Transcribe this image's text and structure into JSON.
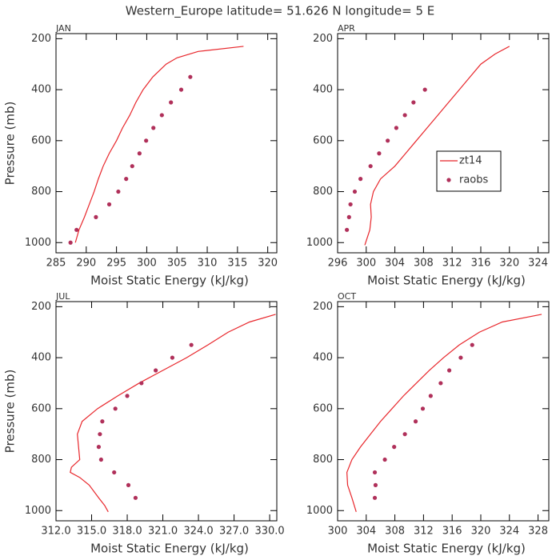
{
  "title": "Western_Europe  latitude= 51.626 N longitude= 5 E",
  "chart_data": [
    {
      "type": "line",
      "label": "JAN",
      "xlabel": "Moist Static Energy (kJ/kg)",
      "ylabel": "Pressure (mb)",
      "xlim": [
        285,
        321.5
      ],
      "xticks": [
        285,
        290,
        295,
        300,
        305,
        310,
        315,
        320
      ],
      "ylim": [
        1040,
        180
      ],
      "yticks": [
        200,
        400,
        600,
        800,
        1000
      ],
      "series": [
        {
          "style": "line",
          "color": "#e8262b",
          "x": [
            288.2,
            288.8,
            289.7,
            290.5,
            291.3,
            292.0,
            292.8,
            293.8,
            295.0,
            296.0,
            297.2,
            298.2,
            299.4,
            301.0,
            303.2,
            305.0,
            308.5,
            316.0
          ],
          "y": [
            1000,
            950,
            900,
            850,
            800,
            750,
            700,
            650,
            600,
            550,
            500,
            450,
            400,
            350,
            300,
            275,
            250,
            230
          ]
        },
        {
          "style": "markers",
          "color": "#b0305a",
          "x": [
            287.4,
            288.4,
            291.6,
            293.8,
            295.3,
            296.6,
            297.6,
            298.8,
            299.9,
            301.1,
            302.5,
            304.0,
            305.7,
            307.2
          ],
          "y": [
            1000,
            950,
            900,
            850,
            800,
            750,
            700,
            650,
            600,
            550,
            500,
            450,
            400,
            350
          ]
        }
      ]
    },
    {
      "type": "line",
      "label": "APR",
      "xlabel": "Moist Static Energy (kJ/kg)",
      "xlim": [
        296,
        325.5
      ],
      "xticks": [
        296,
        300,
        304,
        308,
        312,
        316,
        320,
        324
      ],
      "ylim": [
        1040,
        180
      ],
      "yticks": [
        200,
        400,
        600,
        800,
        1000
      ],
      "legend": "right",
      "series": [
        {
          "name": "zt14",
          "style": "line",
          "color": "#e8262b",
          "x": [
            299.8,
            300.5,
            300.7,
            300.6,
            301.0,
            302.0,
            304.0,
            305.5,
            307.0,
            308.5,
            310.0,
            311.5,
            313.0,
            314.5,
            316.0,
            318.0,
            320.0
          ],
          "y": [
            1010,
            950,
            900,
            850,
            800,
            750,
            700,
            650,
            600,
            550,
            500,
            450,
            400,
            350,
            300,
            260,
            230
          ]
        },
        {
          "name": "raobs",
          "style": "markers",
          "color": "#b0305a",
          "x": [
            297.3,
            297.6,
            297.8,
            298.4,
            299.2,
            300.6,
            301.8,
            303.0,
            304.2,
            305.4,
            306.6,
            308.2
          ],
          "y": [
            950,
            900,
            850,
            800,
            750,
            700,
            650,
            600,
            550,
            500,
            450,
            400
          ]
        }
      ]
    },
    {
      "type": "line",
      "label": "JUL",
      "xlabel": "Moist Static Energy (kJ/kg)",
      "ylabel": "Pressure (mb)",
      "xlim": [
        312,
        330.6
      ],
      "xticks": [
        {
          "value": 312,
          "label": "312.0"
        },
        {
          "value": 315,
          "label": "315.0"
        },
        {
          "value": 318,
          "label": "318.0"
        },
        {
          "value": 321,
          "label": "321.0"
        },
        {
          "value": 324,
          "label": "324.0"
        },
        {
          "value": 327,
          "label": "327.0"
        },
        {
          "value": 330,
          "label": "330.0"
        }
      ],
      "ylim": [
        1040,
        180
      ],
      "yticks": [
        200,
        400,
        600,
        800,
        1000
      ],
      "series": [
        {
          "style": "line",
          "color": "#e8262b",
          "x": [
            316.4,
            316.1,
            315.6,
            314.8,
            314.0,
            313.2,
            313.3,
            314.0,
            313.9,
            313.8,
            314.2,
            315.5,
            317.2,
            319.0,
            321.0,
            323.0,
            324.8,
            326.5,
            328.3,
            330.5
          ],
          "y": [
            1005,
            980,
            950,
            900,
            870,
            850,
            830,
            800,
            750,
            700,
            650,
            600,
            550,
            500,
            450,
            400,
            350,
            300,
            260,
            230
          ]
        },
        {
          "style": "markers",
          "color": "#b0305a",
          "x": [
            318.7,
            318.1,
            316.9,
            315.8,
            315.6,
            315.7,
            315.9,
            317.0,
            318.0,
            319.2,
            320.4,
            321.8,
            323.4
          ],
          "y": [
            950,
            900,
            850,
            800,
            750,
            700,
            650,
            600,
            550,
            500,
            450,
            400,
            350
          ]
        }
      ]
    },
    {
      "type": "line",
      "label": "OCT",
      "xlabel": "Moist Static Energy (kJ/kg)",
      "xlim": [
        300,
        329.5
      ],
      "xticks": [
        300,
        304,
        308,
        312,
        316,
        320,
        324,
        328
      ],
      "ylim": [
        1040,
        180
      ],
      "yticks": [
        200,
        400,
        600,
        800,
        1000
      ],
      "series": [
        {
          "style": "line",
          "color": "#e8262b",
          "x": [
            302.6,
            302.0,
            301.4,
            301.3,
            302.0,
            303.2,
            304.6,
            306.0,
            307.6,
            309.2,
            311.0,
            312.8,
            314.8,
            317.0,
            319.8,
            323.0,
            328.5
          ],
          "y": [
            1005,
            950,
            900,
            850,
            800,
            750,
            700,
            650,
            600,
            550,
            500,
            450,
            400,
            350,
            300,
            260,
            230
          ]
        },
        {
          "style": "markers",
          "color": "#b0305a",
          "x": [
            305.2,
            305.3,
            305.2,
            306.6,
            307.9,
            309.4,
            310.9,
            311.9,
            313.0,
            314.4,
            315.6,
            317.2,
            318.8
          ],
          "y": [
            950,
            900,
            850,
            800,
            750,
            700,
            650,
            600,
            550,
            500,
            450,
            400,
            350
          ]
        }
      ]
    }
  ]
}
